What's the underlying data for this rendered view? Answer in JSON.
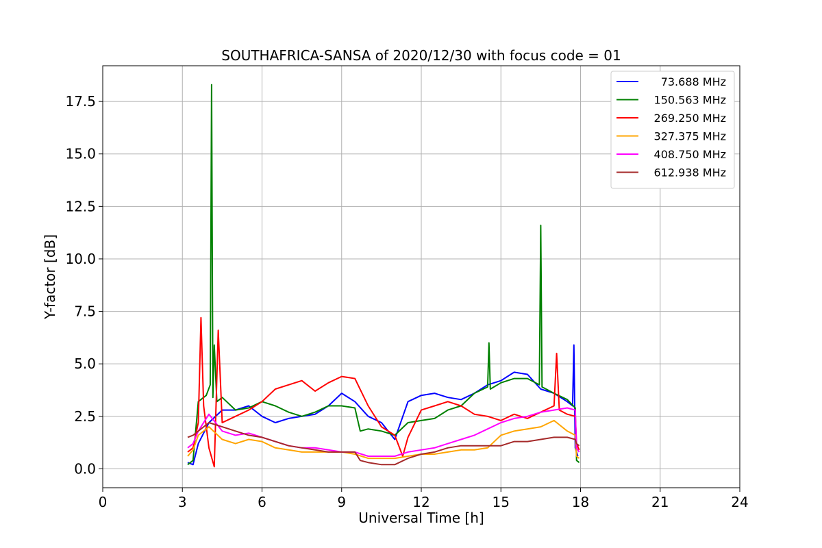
{
  "chart_data": {
    "type": "line",
    "title": "SOUTHAFRICA-SANSA of 2020/12/30 with focus code = 01",
    "xlabel": "Universal Time [h]",
    "ylabel": "Y-factor [dB]",
    "xlim": [
      0,
      24
    ],
    "ylim": [
      -0.9,
      19.2
    ],
    "xticks": [
      0,
      3,
      6,
      9,
      12,
      15,
      18,
      21,
      24
    ],
    "xtick_labels": [
      "0",
      "3",
      "6",
      "9",
      "12",
      "15",
      "18",
      "21",
      "24"
    ],
    "yticks": [
      0.0,
      2.5,
      5.0,
      7.5,
      10.0,
      12.5,
      15.0,
      17.5
    ],
    "ytick_labels": [
      "0.0",
      "2.5",
      "5.0",
      "7.5",
      "10.0",
      "12.5",
      "15.0",
      "17.5"
    ],
    "grid": true,
    "legend_position": "top-right",
    "series": [
      {
        "name": "73.688 MHz",
        "color": "#0000ff",
        "points": [
          [
            3.2,
            0.3
          ],
          [
            3.4,
            0.2
          ],
          [
            3.6,
            1.2
          ],
          [
            4.0,
            2.2
          ],
          [
            4.5,
            2.8
          ],
          [
            5.0,
            2.8
          ],
          [
            5.5,
            3.0
          ],
          [
            6.0,
            2.5
          ],
          [
            6.5,
            2.2
          ],
          [
            7.0,
            2.4
          ],
          [
            7.5,
            2.5
          ],
          [
            8.0,
            2.6
          ],
          [
            8.5,
            3.0
          ],
          [
            9.0,
            3.6
          ],
          [
            9.5,
            3.2
          ],
          [
            10.0,
            2.5
          ],
          [
            10.5,
            2.2
          ],
          [
            11.0,
            1.4
          ],
          [
            11.5,
            3.2
          ],
          [
            12.0,
            3.5
          ],
          [
            12.5,
            3.6
          ],
          [
            13.0,
            3.4
          ],
          [
            13.5,
            3.3
          ],
          [
            14.0,
            3.6
          ],
          [
            14.5,
            4.0
          ],
          [
            15.0,
            4.2
          ],
          [
            15.5,
            4.6
          ],
          [
            16.0,
            4.5
          ],
          [
            16.5,
            3.8
          ],
          [
            17.0,
            3.6
          ],
          [
            17.5,
            3.2
          ],
          [
            17.7,
            3.0
          ],
          [
            17.75,
            5.9
          ],
          [
            17.8,
            1.0
          ],
          [
            17.9,
            0.6
          ]
        ]
      },
      {
        "name": "150.563 MHz",
        "color": "#008000",
        "points": [
          [
            3.2,
            0.2
          ],
          [
            3.4,
            0.4
          ],
          [
            3.6,
            3.2
          ],
          [
            3.9,
            3.5
          ],
          [
            4.05,
            4.0
          ],
          [
            4.1,
            18.3
          ],
          [
            4.15,
            3.4
          ],
          [
            4.2,
            5.9
          ],
          [
            4.3,
            3.2
          ],
          [
            4.5,
            3.4
          ],
          [
            5.0,
            2.8
          ],
          [
            5.5,
            2.9
          ],
          [
            6.0,
            3.2
          ],
          [
            6.5,
            3.0
          ],
          [
            7.0,
            2.7
          ],
          [
            7.5,
            2.5
          ],
          [
            8.0,
            2.7
          ],
          [
            8.5,
            3.0
          ],
          [
            9.0,
            3.0
          ],
          [
            9.5,
            2.9
          ],
          [
            9.7,
            1.8
          ],
          [
            10.0,
            1.9
          ],
          [
            10.5,
            1.8
          ],
          [
            11.0,
            1.6
          ],
          [
            11.5,
            2.2
          ],
          [
            12.0,
            2.3
          ],
          [
            12.5,
            2.4
          ],
          [
            13.0,
            2.8
          ],
          [
            13.5,
            3.0
          ],
          [
            14.0,
            3.6
          ],
          [
            14.5,
            3.9
          ],
          [
            14.55,
            6.0
          ],
          [
            14.6,
            3.8
          ],
          [
            15.0,
            4.1
          ],
          [
            15.5,
            4.3
          ],
          [
            16.0,
            4.3
          ],
          [
            16.45,
            4.0
          ],
          [
            16.5,
            11.6
          ],
          [
            16.55,
            3.9
          ],
          [
            17.0,
            3.6
          ],
          [
            17.5,
            3.3
          ],
          [
            17.8,
            2.9
          ],
          [
            17.85,
            0.4
          ],
          [
            17.95,
            0.3
          ]
        ]
      },
      {
        "name": "269.250 MHz",
        "color": "#ff0000",
        "points": [
          [
            3.2,
            0.8
          ],
          [
            3.4,
            1.0
          ],
          [
            3.6,
            2.2
          ],
          [
            3.7,
            7.2
          ],
          [
            3.8,
            3.0
          ],
          [
            4.0,
            1.0
          ],
          [
            4.2,
            0.1
          ],
          [
            4.35,
            6.6
          ],
          [
            4.5,
            2.2
          ],
          [
            5.0,
            2.5
          ],
          [
            5.5,
            2.8
          ],
          [
            6.0,
            3.2
          ],
          [
            6.5,
            3.8
          ],
          [
            7.0,
            4.0
          ],
          [
            7.5,
            4.2
          ],
          [
            8.0,
            3.7
          ],
          [
            8.5,
            4.1
          ],
          [
            9.0,
            4.4
          ],
          [
            9.5,
            4.3
          ],
          [
            10.0,
            3.0
          ],
          [
            10.5,
            2.0
          ],
          [
            11.0,
            1.6
          ],
          [
            11.3,
            0.6
          ],
          [
            11.5,
            1.5
          ],
          [
            12.0,
            2.8
          ],
          [
            12.5,
            3.0
          ],
          [
            13.0,
            3.2
          ],
          [
            13.5,
            3.0
          ],
          [
            14.0,
            2.6
          ],
          [
            14.5,
            2.5
          ],
          [
            15.0,
            2.3
          ],
          [
            15.5,
            2.6
          ],
          [
            16.0,
            2.4
          ],
          [
            16.5,
            2.7
          ],
          [
            17.0,
            3.0
          ],
          [
            17.1,
            5.5
          ],
          [
            17.2,
            2.8
          ],
          [
            17.5,
            2.6
          ],
          [
            17.8,
            2.5
          ],
          [
            17.85,
            1.2
          ],
          [
            17.95,
            0.9
          ]
        ]
      },
      {
        "name": "327.375 MHz",
        "color": "#ffa500",
        "points": [
          [
            3.2,
            0.6
          ],
          [
            3.4,
            0.9
          ],
          [
            3.6,
            1.6
          ],
          [
            4.0,
            2.0
          ],
          [
            4.5,
            1.4
          ],
          [
            5.0,
            1.2
          ],
          [
            5.5,
            1.4
          ],
          [
            6.0,
            1.3
          ],
          [
            6.5,
            1.0
          ],
          [
            7.0,
            0.9
          ],
          [
            7.5,
            0.8
          ],
          [
            8.0,
            0.8
          ],
          [
            8.5,
            0.8
          ],
          [
            9.0,
            0.8
          ],
          [
            9.5,
            0.7
          ],
          [
            10.0,
            0.5
          ],
          [
            10.5,
            0.5
          ],
          [
            11.0,
            0.5
          ],
          [
            11.5,
            0.6
          ],
          [
            12.0,
            0.7
          ],
          [
            12.5,
            0.7
          ],
          [
            13.0,
            0.8
          ],
          [
            13.5,
            0.9
          ],
          [
            14.0,
            0.9
          ],
          [
            14.5,
            1.0
          ],
          [
            15.0,
            1.6
          ],
          [
            15.5,
            1.8
          ],
          [
            16.0,
            1.9
          ],
          [
            16.5,
            2.0
          ],
          [
            17.0,
            2.3
          ],
          [
            17.5,
            1.8
          ],
          [
            17.8,
            1.6
          ],
          [
            17.85,
            0.6
          ],
          [
            17.95,
            0.5
          ]
        ]
      },
      {
        "name": "408.750 MHz",
        "color": "#ff00ff",
        "points": [
          [
            3.2,
            1.0
          ],
          [
            3.4,
            1.2
          ],
          [
            3.6,
            1.8
          ],
          [
            4.0,
            2.6
          ],
          [
            4.5,
            1.8
          ],
          [
            5.0,
            1.6
          ],
          [
            5.5,
            1.7
          ],
          [
            6.0,
            1.5
          ],
          [
            6.5,
            1.3
          ],
          [
            7.0,
            1.1
          ],
          [
            7.5,
            1.0
          ],
          [
            8.0,
            1.0
          ],
          [
            8.5,
            0.9
          ],
          [
            9.0,
            0.8
          ],
          [
            9.5,
            0.8
          ],
          [
            10.0,
            0.6
          ],
          [
            10.5,
            0.6
          ],
          [
            11.0,
            0.6
          ],
          [
            11.5,
            0.8
          ],
          [
            12.0,
            0.9
          ],
          [
            12.5,
            1.0
          ],
          [
            13.0,
            1.2
          ],
          [
            13.5,
            1.4
          ],
          [
            14.0,
            1.6
          ],
          [
            14.5,
            1.9
          ],
          [
            15.0,
            2.2
          ],
          [
            15.5,
            2.4
          ],
          [
            16.0,
            2.5
          ],
          [
            16.5,
            2.7
          ],
          [
            17.0,
            2.8
          ],
          [
            17.5,
            2.9
          ],
          [
            17.8,
            2.8
          ],
          [
            17.85,
            1.0
          ],
          [
            17.95,
            0.8
          ]
        ]
      },
      {
        "name": "612.938 MHz",
        "color": "#a52a2a",
        "points": [
          [
            3.2,
            1.5
          ],
          [
            3.4,
            1.6
          ],
          [
            3.6,
            1.8
          ],
          [
            4.0,
            2.2
          ],
          [
            4.5,
            2.0
          ],
          [
            5.0,
            1.8
          ],
          [
            5.5,
            1.6
          ],
          [
            6.0,
            1.5
          ],
          [
            6.5,
            1.3
          ],
          [
            7.0,
            1.1
          ],
          [
            7.5,
            1.0
          ],
          [
            8.0,
            0.9
          ],
          [
            8.5,
            0.8
          ],
          [
            9.0,
            0.8
          ],
          [
            9.5,
            0.8
          ],
          [
            9.7,
            0.4
          ],
          [
            10.0,
            0.3
          ],
          [
            10.5,
            0.2
          ],
          [
            11.0,
            0.2
          ],
          [
            11.5,
            0.5
          ],
          [
            12.0,
            0.7
          ],
          [
            12.5,
            0.8
          ],
          [
            13.0,
            1.0
          ],
          [
            13.5,
            1.1
          ],
          [
            14.0,
            1.1
          ],
          [
            14.5,
            1.1
          ],
          [
            15.0,
            1.1
          ],
          [
            15.5,
            1.3
          ],
          [
            16.0,
            1.3
          ],
          [
            16.5,
            1.4
          ],
          [
            17.0,
            1.5
          ],
          [
            17.5,
            1.5
          ],
          [
            17.8,
            1.4
          ],
          [
            17.85,
            1.2
          ],
          [
            17.95,
            1.1
          ]
        ]
      }
    ]
  }
}
